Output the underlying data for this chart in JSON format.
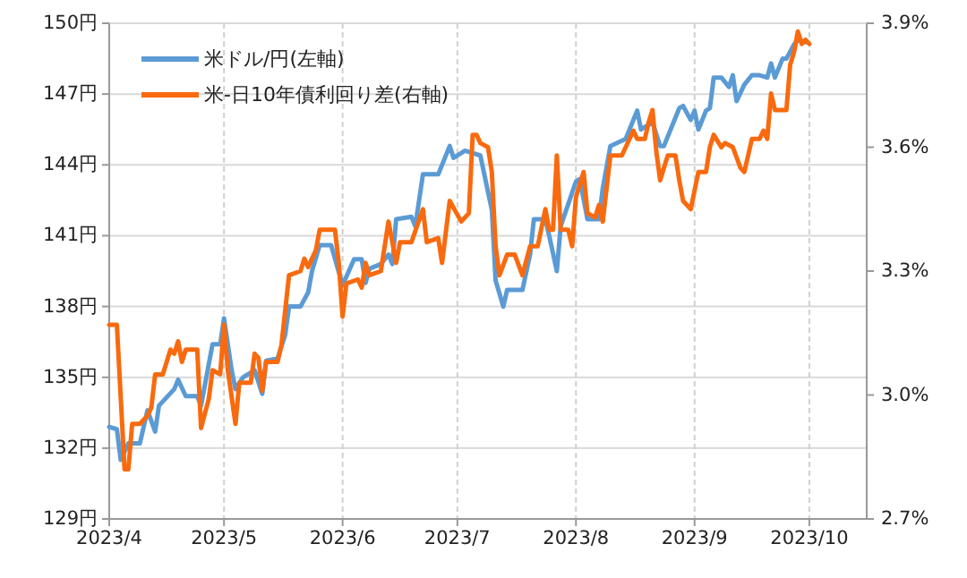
{
  "chart_data": {
    "type": "line",
    "grid": true,
    "legend": "top left",
    "xlim": [
      "2023-04-01",
      "2023-10-16"
    ],
    "xticks": [
      {
        "value": "2023-04-01",
        "label": "2023/4"
      },
      {
        "value": "2023-05-01",
        "label": "2023/5"
      },
      {
        "value": "2023-06-01",
        "label": "2023/6"
      },
      {
        "value": "2023-07-01",
        "label": "2023/7"
      },
      {
        "value": "2023-08-01",
        "label": "2023/8"
      },
      {
        "value": "2023-09-01",
        "label": "2023/9"
      },
      {
        "value": "2023-10-01",
        "label": "2023/10"
      }
    ],
    "ylim": [
      129,
      150
    ],
    "yticks": [
      {
        "value": 129,
        "label": "129円"
      },
      {
        "value": 132,
        "label": "132円"
      },
      {
        "value": 135,
        "label": "135円"
      },
      {
        "value": 138,
        "label": "138円"
      },
      {
        "value": 141,
        "label": "141円"
      },
      {
        "value": 144,
        "label": "144円"
      },
      {
        "value": 147,
        "label": "147円"
      },
      {
        "value": 150,
        "label": "150円"
      }
    ],
    "y2lim": [
      2.7,
      3.9
    ],
    "y2ticks": [
      {
        "value": 2.7,
        "label": "2.7%"
      },
      {
        "value": 3.0,
        "label": "3.0%"
      },
      {
        "value": 3.3,
        "label": "3.3%"
      },
      {
        "value": 3.6,
        "label": "3.6%"
      },
      {
        "value": 3.9,
        "label": "3.9%"
      }
    ],
    "series": [
      {
        "name": "米ドル/円(左軸)",
        "color": "#5b9bd5",
        "axis": "y",
        "x": [
          "2023-04-01",
          "2023-04-03",
          "2023-04-04",
          "2023-04-06",
          "2023-04-09",
          "2023-04-11",
          "2023-04-13",
          "2023-04-14",
          "2023-04-18",
          "2023-04-19",
          "2023-04-21",
          "2023-04-24",
          "2023-04-25",
          "2023-04-28",
          "2023-04-30",
          "2023-05-01",
          "2023-05-03",
          "2023-05-04",
          "2023-05-06",
          "2023-05-09",
          "2023-05-11",
          "2023-05-12",
          "2023-05-15",
          "2023-05-17",
          "2023-05-18",
          "2023-05-21",
          "2023-05-23",
          "2023-05-24",
          "2023-05-26",
          "2023-05-29",
          "2023-06-01",
          "2023-06-04",
          "2023-06-06",
          "2023-06-07",
          "2023-06-08",
          "2023-06-11",
          "2023-06-13",
          "2023-06-14",
          "2023-06-15",
          "2023-06-19",
          "2023-06-20",
          "2023-06-22",
          "2023-06-26",
          "2023-06-29",
          "2023-06-30",
          "2023-07-03",
          "2023-07-05",
          "2023-07-07",
          "2023-07-10",
          "2023-07-11",
          "2023-07-13",
          "2023-07-14",
          "2023-07-18",
          "2023-07-20",
          "2023-07-21",
          "2023-07-24",
          "2023-07-25",
          "2023-07-27",
          "2023-07-28",
          "2023-08-01",
          "2023-08-02",
          "2023-08-04",
          "2023-08-07",
          "2023-08-08",
          "2023-08-10",
          "2023-08-14",
          "2023-08-15",
          "2023-08-17",
          "2023-08-18",
          "2023-08-21",
          "2023-08-23",
          "2023-08-24",
          "2023-08-28",
          "2023-08-29",
          "2023-08-31",
          "2023-09-01",
          "2023-09-02",
          "2023-09-04",
          "2023-09-05",
          "2023-09-06",
          "2023-09-08",
          "2023-09-10",
          "2023-09-11",
          "2023-09-12",
          "2023-09-14",
          "2023-09-16",
          "2023-09-18",
          "2023-09-20",
          "2023-09-21",
          "2023-09-22",
          "2023-09-24",
          "2023-09-25",
          "2023-09-27",
          "2023-09-28",
          "2023-09-30"
        ],
        "values": [
          132.9,
          132.8,
          131.5,
          132.2,
          132.2,
          133.6,
          132.7,
          133.8,
          134.5,
          134.9,
          134.2,
          134.2,
          133.8,
          136.4,
          136.4,
          137.5,
          135.3,
          134.5,
          135.0,
          135.3,
          134.3,
          135.7,
          135.8,
          136.8,
          138.0,
          138.0,
          138.6,
          139.5,
          140.6,
          140.6,
          138.9,
          140.0,
          140.0,
          139.0,
          139.6,
          139.8,
          140.2,
          139.8,
          141.7,
          141.8,
          141.4,
          143.6,
          143.6,
          144.8,
          144.3,
          144.6,
          144.5,
          144.4,
          142.1,
          139.1,
          138.0,
          138.7,
          138.7,
          140.2,
          141.7,
          141.7,
          141.0,
          139.5,
          141.4,
          143.3,
          143.4,
          141.7,
          141.7,
          143.0,
          144.8,
          145.1,
          145.5,
          146.3,
          145.5,
          145.8,
          144.8,
          144.8,
          146.4,
          146.5,
          145.9,
          146.3,
          145.5,
          146.3,
          146.4,
          147.7,
          147.7,
          147.3,
          147.8,
          146.7,
          147.4,
          147.8,
          147.8,
          147.7,
          148.3,
          147.7,
          148.5,
          148.5,
          149.1,
          149.3,
          149.2
        ]
      },
      {
        "name": "米-日10年債利回り差(右軸)",
        "color": "#f96a0e",
        "axis": "y2",
        "x": [
          "2023-04-01",
          "2023-04-03",
          "2023-04-05",
          "2023-04-06",
          "2023-04-07",
          "2023-04-09",
          "2023-04-11",
          "2023-04-12",
          "2023-04-13",
          "2023-04-15",
          "2023-04-17",
          "2023-04-18",
          "2023-04-19",
          "2023-04-20",
          "2023-04-21",
          "2023-04-24",
          "2023-04-25",
          "2023-04-27",
          "2023-04-28",
          "2023-04-30",
          "2023-05-01",
          "2023-05-02",
          "2023-05-04",
          "2023-05-05",
          "2023-05-08",
          "2023-05-09",
          "2023-05-10",
          "2023-05-11",
          "2023-05-12",
          "2023-05-15",
          "2023-05-16",
          "2023-05-18",
          "2023-05-21",
          "2023-05-22",
          "2023-05-23",
          "2023-05-25",
          "2023-05-26",
          "2023-05-30",
          "2023-05-31",
          "2023-06-01",
          "2023-06-02",
          "2023-06-05",
          "2023-06-06",
          "2023-06-07",
          "2023-06-08",
          "2023-06-11",
          "2023-06-13",
          "2023-06-15",
          "2023-06-16",
          "2023-06-19",
          "2023-06-22",
          "2023-06-23",
          "2023-06-26",
          "2023-06-27",
          "2023-06-29",
          "2023-07-02",
          "2023-07-04",
          "2023-07-05",
          "2023-07-06",
          "2023-07-07",
          "2023-07-09",
          "2023-07-10",
          "2023-07-11",
          "2023-07-12",
          "2023-07-14",
          "2023-07-16",
          "2023-07-18",
          "2023-07-20",
          "2023-07-22",
          "2023-07-24",
          "2023-07-25",
          "2023-07-26",
          "2023-07-27",
          "2023-07-28",
          "2023-07-30",
          "2023-07-31",
          "2023-08-01",
          "2023-08-03",
          "2023-08-04",
          "2023-08-06",
          "2023-08-07",
          "2023-08-08",
          "2023-08-10",
          "2023-08-13",
          "2023-08-14",
          "2023-08-16",
          "2023-08-17",
          "2023-08-19",
          "2023-08-20",
          "2023-08-21",
          "2023-08-22",
          "2023-08-23",
          "2023-08-25",
          "2023-08-27",
          "2023-08-28",
          "2023-08-29",
          "2023-08-31",
          "2023-09-02",
          "2023-09-04",
          "2023-09-05",
          "2023-09-06",
          "2023-09-08",
          "2023-09-09",
          "2023-09-11",
          "2023-09-13",
          "2023-09-14",
          "2023-09-16",
          "2023-09-18",
          "2023-09-19",
          "2023-09-20",
          "2023-09-21",
          "2023-09-22",
          "2023-09-25",
          "2023-09-26",
          "2023-09-27",
          "2023-09-28",
          "2023-09-29",
          "2023-09-30",
          "2023-10-01"
        ],
        "values": [
          3.17,
          3.17,
          2.82,
          2.82,
          2.93,
          2.93,
          2.95,
          2.97,
          3.05,
          3.05,
          3.11,
          3.1,
          3.13,
          3.08,
          3.11,
          3.11,
          2.92,
          2.99,
          3.06,
          3.05,
          3.17,
          3.06,
          2.93,
          3.03,
          3.03,
          3.1,
          3.09,
          3.01,
          3.08,
          3.08,
          3.12,
          3.29,
          3.3,
          3.33,
          3.31,
          3.35,
          3.4,
          3.4,
          3.32,
          3.19,
          3.27,
          3.28,
          3.26,
          3.32,
          3.29,
          3.3,
          3.42,
          3.32,
          3.37,
          3.37,
          3.45,
          3.37,
          3.38,
          3.32,
          3.47,
          3.42,
          3.44,
          3.63,
          3.63,
          3.61,
          3.6,
          3.54,
          3.36,
          3.29,
          3.34,
          3.34,
          3.29,
          3.36,
          3.36,
          3.45,
          3.4,
          3.4,
          3.58,
          3.4,
          3.4,
          3.36,
          3.48,
          3.54,
          3.44,
          3.43,
          3.46,
          3.42,
          3.58,
          3.58,
          3.6,
          3.64,
          3.62,
          3.62,
          3.66,
          3.69,
          3.59,
          3.52,
          3.58,
          3.58,
          3.52,
          3.47,
          3.45,
          3.54,
          3.54,
          3.6,
          3.63,
          3.6,
          3.61,
          3.6,
          3.55,
          3.54,
          3.62,
          3.62,
          3.64,
          3.62,
          3.73,
          3.69,
          3.69,
          3.8,
          3.83,
          3.88,
          3.85,
          3.86,
          3.85
        ]
      }
    ]
  }
}
